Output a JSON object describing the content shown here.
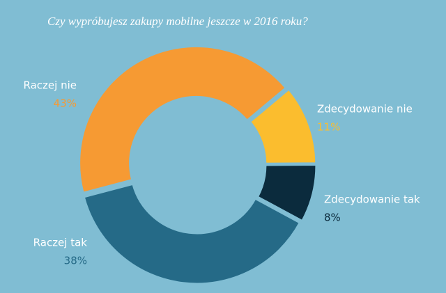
{
  "chart_data": {
    "type": "donut",
    "title": "Czy wypróbujesz zakupy mobilne jeszcze w 2016 roku?",
    "categories": [
      "Zdecydowanie nie",
      "Zdecydowanie tak",
      "Raczej tak",
      "Raczej nie"
    ],
    "values": [
      11,
      8,
      38,
      43
    ],
    "value_labels": [
      "11%",
      "8%",
      "38%",
      "43%"
    ],
    "colors": [
      "#fbbd2e",
      "#0b2b3d",
      "#256a87",
      "#f69a33"
    ]
  }
}
